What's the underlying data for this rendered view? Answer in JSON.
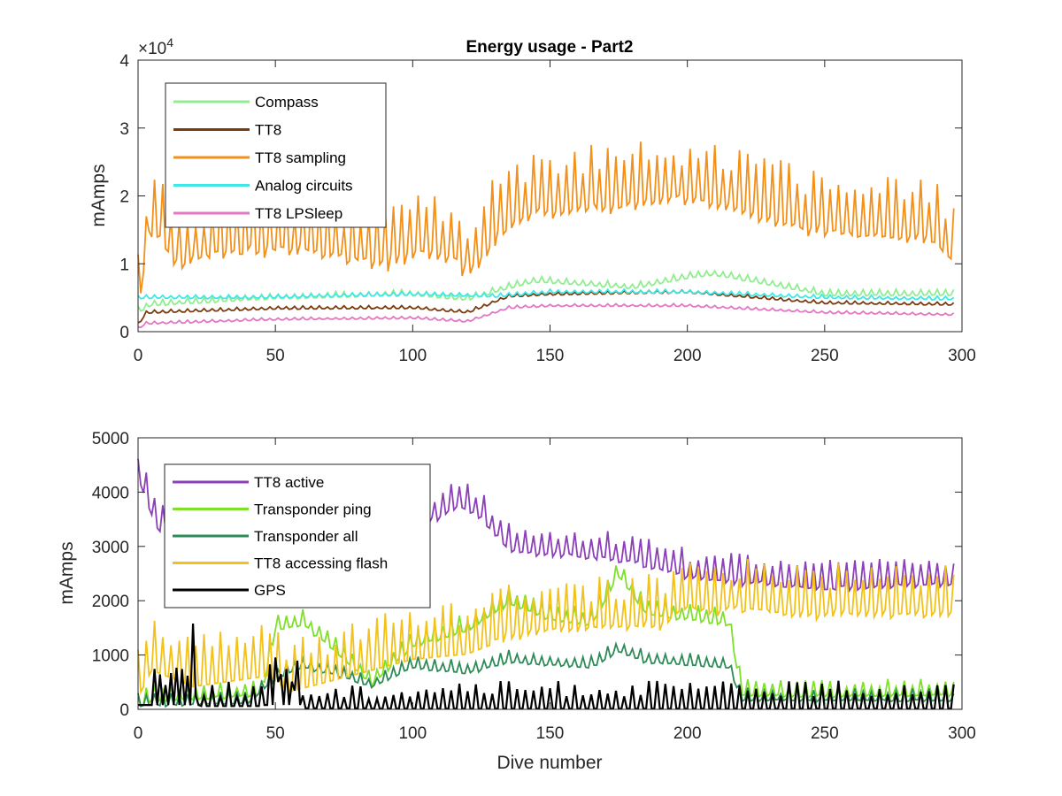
{
  "chart_data": [
    {
      "type": "line",
      "title": "Energy usage - Part2",
      "xlabel": "",
      "ylabel": "mAmps",
      "xlim": [
        0,
        300
      ],
      "ylim": [
        0,
        40000
      ],
      "xticks": [
        "0",
        "50",
        "100",
        "150",
        "200",
        "250",
        "300"
      ],
      "yticks": [
        "0",
        "1",
        "2",
        "3",
        "4"
      ],
      "y_exponent_base": "×10",
      "y_exponent_power": "4",
      "legend_position": "top-left",
      "series": [
        {
          "name": "Compass",
          "color": "#90ee90",
          "base": [
            [
              0,
              3000
            ],
            [
              5,
              4000
            ],
            [
              50,
              5000
            ],
            [
              100,
              5500
            ],
            [
              120,
              4800
            ],
            [
              135,
              6500
            ],
            [
              145,
              7500
            ],
            [
              180,
              6500
            ],
            [
              200,
              8000
            ],
            [
              210,
              8500
            ],
            [
              250,
              5500
            ],
            [
              290,
              5500
            ],
            [
              297,
              5500
            ]
          ],
          "period": 3,
          "amp": 600,
          "seed": 11
        },
        {
          "name": "TT8",
          "color": "#7a3b0e",
          "base": [
            [
              0,
              1000
            ],
            [
              3,
              2800
            ],
            [
              50,
              3400
            ],
            [
              100,
              3500
            ],
            [
              115,
              3000
            ],
            [
              120,
              2800
            ],
            [
              135,
              5200
            ],
            [
              150,
              5500
            ],
            [
              200,
              5800
            ],
            [
              250,
              4200
            ],
            [
              297,
              4000
            ]
          ],
          "period": 3,
          "amp": 300,
          "seed": 12
        },
        {
          "name": "TT8 sampling",
          "color": "#f39019",
          "base": [
            [
              0,
              5000
            ],
            [
              4,
              16000
            ],
            [
              8,
              15000
            ],
            [
              15,
              11000
            ],
            [
              30,
              13000
            ],
            [
              60,
              13500
            ],
            [
              88,
              11000
            ],
            [
              100,
              13000
            ],
            [
              115,
              12000
            ],
            [
              120,
              10000
            ],
            [
              135,
              17000
            ],
            [
              145,
              19000
            ],
            [
              180,
              20000
            ],
            [
              200,
              21000
            ],
            [
              210,
              20000
            ],
            [
              250,
              16000
            ],
            [
              290,
              15000
            ],
            [
              297,
              11500
            ]
          ],
          "period": 3,
          "amp": 6000,
          "seed": 13
        },
        {
          "name": "Analog circuits",
          "color": "#3fe8e8",
          "base": [
            [
              0,
              5000
            ],
            [
              40,
              5000
            ],
            [
              100,
              5500
            ],
            [
              130,
              5200
            ],
            [
              150,
              5800
            ],
            [
              200,
              5800
            ],
            [
              250,
              5000
            ],
            [
              297,
              4800
            ]
          ],
          "period": 3,
          "amp": 350,
          "seed": 14
        },
        {
          "name": "TT8 LPSleep",
          "color": "#e377c2",
          "base": [
            [
              0,
              500
            ],
            [
              3,
              1200
            ],
            [
              50,
              1800
            ],
            [
              100,
              2000
            ],
            [
              120,
              1500
            ],
            [
              135,
              3500
            ],
            [
              150,
              3800
            ],
            [
              200,
              3800
            ],
            [
              250,
              2800
            ],
            [
              297,
              2500
            ]
          ],
          "period": 3,
          "amp": 250,
          "seed": 15
        }
      ]
    },
    {
      "type": "line",
      "title": "",
      "xlabel": "Dive number",
      "ylabel": "mAmps",
      "xlim": [
        0,
        300
      ],
      "ylim": [
        0,
        5000
      ],
      "xticks": [
        "0",
        "50",
        "100",
        "150",
        "200",
        "250",
        "300"
      ],
      "yticks": [
        "0",
        "1000",
        "2000",
        "3000",
        "4000",
        "5000"
      ],
      "legend_position": "top-left",
      "series": [
        {
          "name": "TT8 active",
          "color": "#8b3fb8",
          "base": [
            [
              0,
              4350
            ],
            [
              3,
              3900
            ],
            [
              8,
              3300
            ],
            [
              15,
              3800
            ],
            [
              60,
              3500
            ],
            [
              100,
              3400
            ],
            [
              117,
              3800
            ],
            [
              125,
              3600
            ],
            [
              135,
              3000
            ],
            [
              160,
              2900
            ],
            [
              180,
              2800
            ],
            [
              200,
              2500
            ],
            [
              250,
              2300
            ],
            [
              297,
              2400
            ]
          ],
          "period": 3,
          "amp": 350,
          "seed": 21
        },
        {
          "name": "Transponder ping",
          "color": "#7ee02a",
          "base": [
            [
              0,
              100
            ],
            [
              5,
              200
            ],
            [
              45,
              300
            ],
            [
              50,
              1500
            ],
            [
              60,
              1600
            ],
            [
              70,
              1200
            ],
            [
              85,
              500
            ],
            [
              100,
              1200
            ],
            [
              120,
              1500
            ],
            [
              135,
              2000
            ],
            [
              150,
              1700
            ],
            [
              165,
              1600
            ],
            [
              175,
              2500
            ],
            [
              185,
              1800
            ],
            [
              215,
              1600
            ],
            [
              220,
              300
            ],
            [
              297,
              300
            ]
          ],
          "period": 3,
          "amp": 200,
          "seed": 22
        },
        {
          "name": "Transponder all",
          "color": "#2e8b57",
          "base": [
            [
              0,
              100
            ],
            [
              40,
              150
            ],
            [
              50,
              600
            ],
            [
              60,
              800
            ],
            [
              70,
              700
            ],
            [
              85,
              450
            ],
            [
              100,
              800
            ],
            [
              120,
              700
            ],
            [
              135,
              900
            ],
            [
              165,
              800
            ],
            [
              175,
              1100
            ],
            [
              185,
              900
            ],
            [
              215,
              800
            ],
            [
              220,
              200
            ],
            [
              297,
              200
            ]
          ],
          "period": 3,
          "amp": 150,
          "seed": 23
        },
        {
          "name": "TT8 accessing flash",
          "color": "#f2c21b",
          "base": [
            [
              0,
              400
            ],
            [
              5,
              900
            ],
            [
              20,
              600
            ],
            [
              48,
              800
            ],
            [
              55,
              500
            ],
            [
              85,
              900
            ],
            [
              100,
              1100
            ],
            [
              120,
              1200
            ],
            [
              135,
              1500
            ],
            [
              150,
              1600
            ],
            [
              190,
              1700
            ],
            [
              200,
              2000
            ],
            [
              250,
              1900
            ],
            [
              297,
              1900
            ]
          ],
          "period": 3,
          "amp": 600,
          "seed": 24
        },
        {
          "name": "GPS",
          "color": "#000000",
          "base": [
            [
              0,
              150
            ],
            [
              297,
              150
            ]
          ],
          "period": 3,
          "amp": 0,
          "seed": 25
        }
      ]
    }
  ]
}
